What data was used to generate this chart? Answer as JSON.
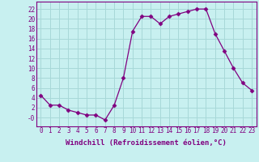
{
  "x": [
    0,
    1,
    2,
    3,
    4,
    5,
    6,
    7,
    8,
    9,
    10,
    11,
    12,
    13,
    14,
    15,
    16,
    17,
    18,
    19,
    20,
    21,
    22,
    23
  ],
  "y": [
    4.5,
    2.5,
    2.5,
    1.5,
    1.0,
    0.5,
    0.5,
    -0.5,
    2.5,
    8.0,
    17.5,
    20.5,
    20.5,
    19.0,
    20.5,
    21.0,
    21.5,
    22.0,
    22.0,
    17.0,
    13.5,
    10.0,
    7.0,
    5.5
  ],
  "xlim": [
    -0.5,
    23.5
  ],
  "ylim": [
    -1.8,
    23.5
  ],
  "yticks": [
    0,
    2,
    4,
    6,
    8,
    10,
    12,
    14,
    16,
    18,
    20,
    22
  ],
  "ytick_labels": [
    "-0",
    "2",
    "4",
    "6",
    "8",
    "10",
    "12",
    "14",
    "16",
    "18",
    "20",
    "22"
  ],
  "xticks": [
    0,
    1,
    2,
    3,
    4,
    5,
    6,
    7,
    8,
    9,
    10,
    11,
    12,
    13,
    14,
    15,
    16,
    17,
    18,
    19,
    20,
    21,
    22,
    23
  ],
  "xlabel": "Windchill (Refroidissement éolien,°C)",
  "line_color": "#800080",
  "marker": "D",
  "marker_size": 2.5,
  "bg_color": "#c8f0f0",
  "grid_color": "#a8d8d8",
  "spine_color": "#800080",
  "tick_fontsize": 5.5,
  "xlabel_fontsize": 6.5
}
